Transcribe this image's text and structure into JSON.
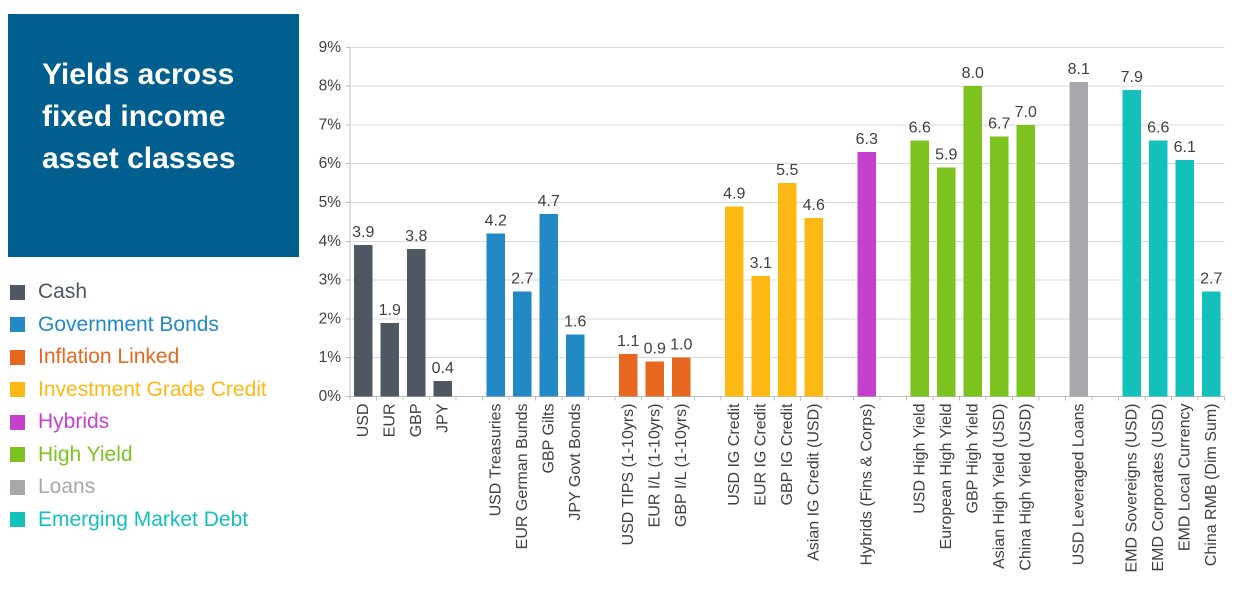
{
  "title": {
    "text": "Yields across fixed income asset classes",
    "lines": [
      "Yields across",
      "fixed income",
      "asset classes"
    ]
  },
  "colors": {
    "title_box": "#005F8E",
    "title_text": "#FFFFFF",
    "grid": "#D9D9D9",
    "axis": "#BFBFBF",
    "label_text": "#404040",
    "background": "#FFFFFF"
  },
  "legend": {
    "items": [
      {
        "label": "Cash",
        "color": "#4F5763"
      },
      {
        "label": "Government Bonds",
        "color": "#2289C4"
      },
      {
        "label": "Inflation Linked",
        "color": "#E6671F"
      },
      {
        "label": "Investment Grade Credit",
        "color": "#FDB813"
      },
      {
        "label": "Hybrids",
        "color": "#C640CE"
      },
      {
        "label": "High Yield",
        "color": "#7CC320"
      },
      {
        "label": "Loans",
        "color": "#A6A8AB"
      },
      {
        "label": "Emerging Market Debt",
        "color": "#14C1BA"
      }
    ]
  },
  "chart_data": {
    "type": "bar",
    "title": "Yields across fixed income asset classes",
    "xlabel": "",
    "ylabel": "",
    "ylim": [
      0,
      9
    ],
    "ytick_labels": [
      "0%",
      "1%",
      "2%",
      "3%",
      "4%",
      "5%",
      "6%",
      "7%",
      "8%",
      "9%"
    ],
    "grid": true,
    "legend_position": "left",
    "value_labels": true,
    "groups": [
      {
        "series": "Cash",
        "color": "#4F5763",
        "bars": [
          {
            "label": "USD",
            "value": 3.9
          },
          {
            "label": "EUR",
            "value": 1.9
          },
          {
            "label": "GBP",
            "value": 3.8
          },
          {
            "label": "JPY",
            "value": 0.4
          }
        ]
      },
      {
        "series": "Government Bonds",
        "color": "#2289C4",
        "bars": [
          {
            "label": "USD Treasuries",
            "value": 4.2
          },
          {
            "label": "EUR German Bunds",
            "value": 2.7
          },
          {
            "label": "GBP Gilts",
            "value": 4.7
          },
          {
            "label": "JPY Govt Bonds",
            "value": 1.6
          }
        ]
      },
      {
        "series": "Inflation Linked",
        "color": "#E6671F",
        "bars": [
          {
            "label": "USD TIPS (1-10yrs)",
            "value": 1.1
          },
          {
            "label": "EUR I/L (1-10yrs)",
            "value": 0.9
          },
          {
            "label": "GBP I/L (1-10yrs)",
            "value": 1.0
          }
        ]
      },
      {
        "series": "Investment Grade Credit",
        "color": "#FDB813",
        "bars": [
          {
            "label": "USD IG Credit",
            "value": 4.9
          },
          {
            "label": "EUR IG Credit",
            "value": 3.1
          },
          {
            "label": "GBP IG Credit",
            "value": 5.5
          },
          {
            "label": "Asian IG Credit (USD)",
            "value": 4.6
          }
        ]
      },
      {
        "series": "Hybrids",
        "color": "#C640CE",
        "bars": [
          {
            "label": "Hybrids (Fins & Corps)",
            "value": 6.3
          }
        ]
      },
      {
        "series": "High Yield",
        "color": "#7CC320",
        "bars": [
          {
            "label": "USD High Yield",
            "value": 6.6
          },
          {
            "label": "European High Yield",
            "value": 5.9
          },
          {
            "label": "GBP High Yield",
            "value": 8.0
          },
          {
            "label": "Asian High Yield (USD)",
            "value": 6.7
          },
          {
            "label": "China High Yield (USD)",
            "value": 7.0
          }
        ]
      },
      {
        "series": "Loans",
        "color": "#A6A8AB",
        "bars": [
          {
            "label": "USD Leveraged Loans",
            "value": 8.1
          }
        ]
      },
      {
        "series": "Emerging Market Debt",
        "color": "#14C1BA",
        "bars": [
          {
            "label": "EMD Sovereigns (USD)",
            "value": 7.9
          },
          {
            "label": "EMD Corporates (USD)",
            "value": 6.6
          },
          {
            "label": "EMD Local Currency",
            "value": 6.1
          },
          {
            "label": "China RMB (Dim Sum)",
            "value": 2.7
          }
        ]
      }
    ]
  }
}
